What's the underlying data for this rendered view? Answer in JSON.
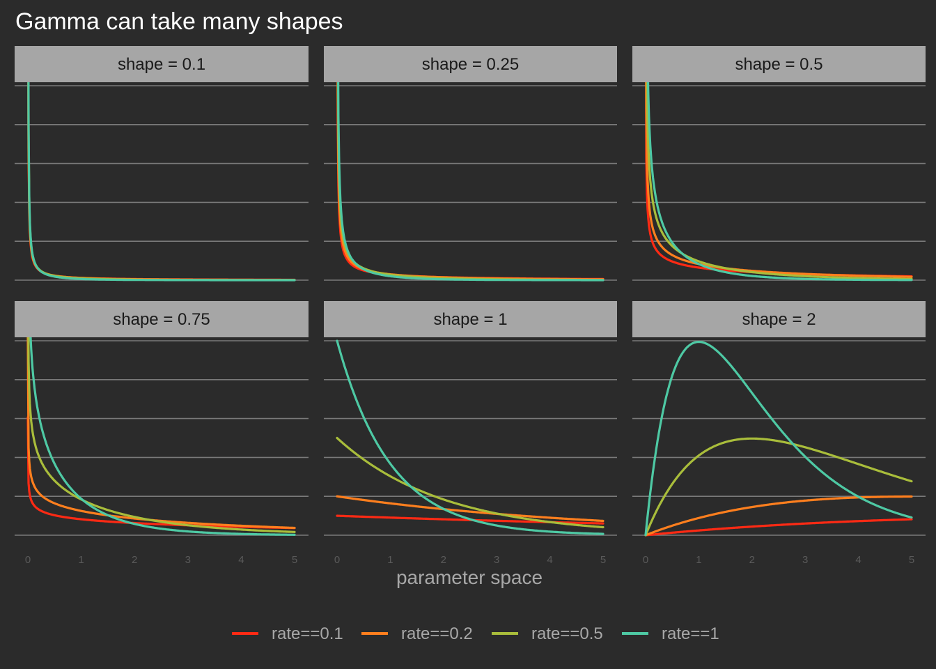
{
  "chart_data": {
    "type": "line",
    "title": "Gamma can take many shapes",
    "xlabel": "parameter space",
    "x_range": [
      0,
      5
    ],
    "x_ticks": [
      "0",
      "1",
      "2",
      "3",
      "4",
      "5"
    ],
    "grid": true,
    "legend_position": "bottom",
    "series": [
      {
        "name": "rate==0.1",
        "rate": 0.1,
        "color": "#ff2a14"
      },
      {
        "name": "rate==0.2",
        "rate": 0.2,
        "color": "#ff7f1e"
      },
      {
        "name": "rate==0.5",
        "rate": 0.5,
        "color": "#a9bd3b"
      },
      {
        "name": "rate==1",
        "rate": 1.0,
        "color": "#4ec9a4"
      }
    ],
    "panels": [
      {
        "label": "shape = 0.1",
        "shape": 0.1,
        "ymax": 6.5
      },
      {
        "label": "shape = 0.25",
        "shape": 0.25,
        "ymax": 5.0
      },
      {
        "label": "shape = 0.5",
        "shape": 0.5,
        "ymax": 2.5
      },
      {
        "label": "shape = 0.75",
        "shape": 0.75,
        "ymax": 1.6
      },
      {
        "label": "shape = 1",
        "shape": 1,
        "ymax": 1.0
      },
      {
        "label": "shape = 2",
        "shape": 2,
        "ymax": 0.37
      }
    ]
  }
}
